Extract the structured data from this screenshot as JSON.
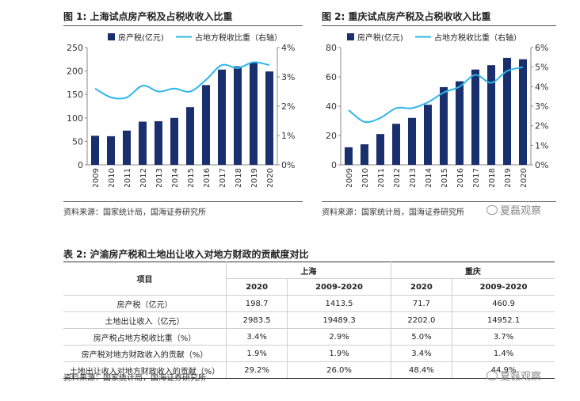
{
  "fig1": {
    "title": "图 1:  上海试点房产税及占税收收入比重",
    "source": "资料来源：国家统计局，国海证券研究所"
  },
  "fig2": {
    "title": "图 2:  重庆试点房产税及占税收收入比重",
    "source": "资料来源：国家统计局，国海证券研究所"
  },
  "table": {
    "title": "表 2:  沪渝房产税和土地出让收入对地方财政的贡献度对比",
    "item_header": "项目",
    "group_shanghai": "上海",
    "group_chongqing": "重庆",
    "col_2020_a": "2020",
    "col_range_a": "2009-2020",
    "col_2020_b": "2020",
    "col_range_b": "2009-2020",
    "rows": [
      {
        "label": "房产税（亿元）",
        "sh2020": "198.7",
        "shAll": "1413.5",
        "cq2020": "71.7",
        "cqAll": "460.9"
      },
      {
        "label": "土地出让收入（亿元）",
        "sh2020": "2983.5",
        "shAll": "19489.3",
        "cq2020": "2202.0",
        "cqAll": "14952.1"
      },
      {
        "label": "房产税占地方税收比重（%）",
        "sh2020": "3.4%",
        "shAll": "2.9%",
        "cq2020": "5.0%",
        "cqAll": "3.7%"
      },
      {
        "label": "房产税对地方财政收入的贡献（%）",
        "sh2020": "1.9%",
        "shAll": "1.9%",
        "cq2020": "3.4%",
        "cqAll": "1.4%"
      },
      {
        "label": "土地出让收入对地方财政收入的贡献（%）",
        "sh2020": "29.2%",
        "shAll": "26.0%",
        "cq2020": "48.4%",
        "cqAll": "44.9%"
      }
    ],
    "source": "资料来源：国家统计局，国海证券研究所"
  },
  "watermark": "夏磊观察",
  "colors": {
    "bar": "#1a2f6e",
    "line": "#2db7ea",
    "rule": "#555555"
  },
  "chart_data": [
    {
      "type": "bar",
      "categories": [
        "2009",
        "2010",
        "2011",
        "2012",
        "2013",
        "2014",
        "2015",
        "2016",
        "2017",
        "2018",
        "2019",
        "2020"
      ],
      "series": [
        {
          "name": "房产税(亿元)",
          "axis": "left",
          "type": "bar",
          "values": [
            62,
            61,
            73,
            92,
            93,
            100,
            123,
            170,
            203,
            210,
            218,
            199
          ]
        },
        {
          "name": "占地方税收比重（右轴）",
          "axis": "right",
          "type": "line",
          "values": [
            2.6,
            2.3,
            2.3,
            2.7,
            2.5,
            2.6,
            2.5,
            2.9,
            3.4,
            3.3,
            3.5,
            3.4
          ]
        }
      ],
      "left_axis": {
        "ylim": [
          0,
          250
        ],
        "ticks": [
          "0",
          "50",
          "100",
          "150",
          "200",
          "250"
        ]
      },
      "right_axis": {
        "ylim": [
          0,
          4
        ],
        "ticks": [
          "0%",
          "1%",
          "2%",
          "3%",
          "4%"
        ]
      },
      "legend_position": "top"
    },
    {
      "type": "bar",
      "categories": [
        "2009",
        "2010",
        "2011",
        "2012",
        "2013",
        "2014",
        "2015",
        "2016",
        "2017",
        "2018",
        "2019",
        "2020"
      ],
      "series": [
        {
          "name": "房产税(亿元)",
          "axis": "left",
          "type": "bar",
          "values": [
            12,
            14,
            21,
            28,
            32,
            41,
            53,
            57,
            65,
            68,
            73,
            72
          ]
        },
        {
          "name": "占地方税收比重（右轴）",
          "axis": "right",
          "type": "line",
          "values": [
            2.8,
            2.2,
            2.4,
            2.9,
            2.9,
            3.2,
            3.7,
            4.0,
            4.6,
            4.2,
            4.8,
            5.0
          ]
        }
      ],
      "left_axis": {
        "ylim": [
          0,
          80
        ],
        "ticks": [
          "0",
          "20",
          "40",
          "60",
          "80"
        ]
      },
      "right_axis": {
        "ylim": [
          0,
          6
        ],
        "ticks": [
          "0%",
          "1%",
          "2%",
          "3%",
          "4%",
          "5%",
          "6%"
        ]
      },
      "legend_position": "top"
    }
  ]
}
